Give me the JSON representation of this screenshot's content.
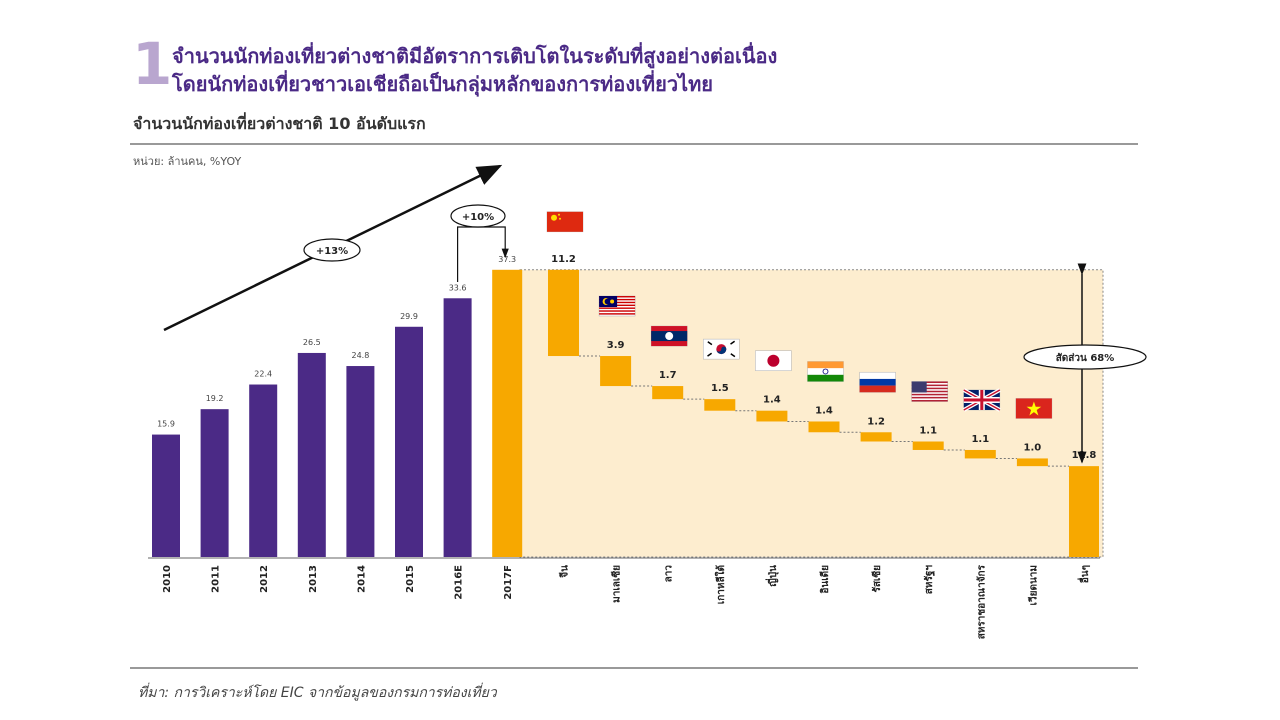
{
  "header": {
    "number": "1",
    "title_line1": "จำนวนนักท่องเที่ยวต่างชาติมีอัตราการเติบโตในระดับที่สูงอย่างต่อเนื่อง",
    "title_line2": "โดยนักท่องเที่ยวชาวเอเชียถือเป็นกลุ่มหลักของการท่องเที่ยวไทย",
    "subtitle": "จำนวนนักท่องเที่ยวต่างชาติ 10 อันดับแรก",
    "unit": "หน่วย: ล้านคน, %YOY"
  },
  "footer": {
    "source": "ที่มา: การวิเคราะห์โดย  EIC จากข้อมูลของกรมการท่องเที่ยว"
  },
  "colors": {
    "purple": "#4b2a86",
    "orange": "#f7a800",
    "highlight": "#fdedcf"
  },
  "annotations": {
    "cagr_label": "+13%",
    "growth_label": "+10%",
    "share_label": "สัดส่วน  68%"
  },
  "chart_data": [
    {
      "type": "bar",
      "categories": [
        "2010",
        "2011",
        "2012",
        "2013",
        "2014",
        "2015",
        "2016E",
        "2017F"
      ],
      "values": [
        15.9,
        19.2,
        22.4,
        26.5,
        24.8,
        29.9,
        33.6,
        37.3
      ],
      "colors": [
        "purple",
        "purple",
        "purple",
        "purple",
        "purple",
        "purple",
        "purple",
        "orange"
      ]
    },
    {
      "type": "bar",
      "subtype": "waterfall",
      "categories": [
        "จีน",
        "มาเลเซีย",
        "ลาว",
        "เกาหลีใต้",
        "ญี่ปุ่น",
        "อินเดีย",
        "รัสเซีย",
        "สหรัฐฯ",
        "สหราชอาณาจักร",
        "เวียดนาม",
        "อื่นๆ"
      ],
      "values": [
        11.2,
        3.9,
        1.7,
        1.5,
        1.4,
        1.4,
        1.2,
        1.1,
        1.1,
        1.0,
        11.8
      ],
      "flags": [
        "china-flag-icon",
        "malaysia-flag-icon",
        "laos-flag-icon",
        "south-korea-flag-icon",
        "japan-flag-icon",
        "india-flag-icon",
        "russia-flag-icon",
        "usa-flag-icon",
        "uk-flag-icon",
        "vietnam-flag-icon",
        ""
      ],
      "total": 37.3
    }
  ]
}
